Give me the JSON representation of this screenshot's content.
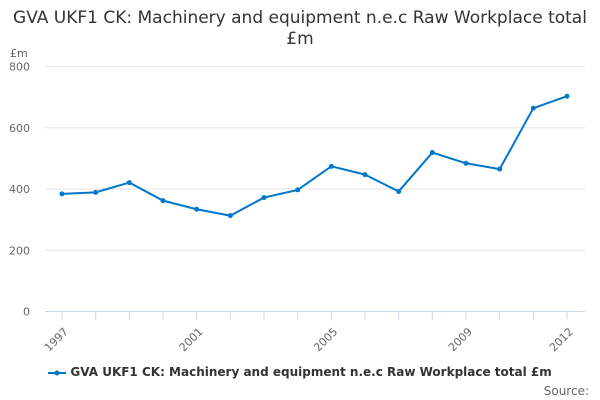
{
  "chart_data": {
    "type": "line",
    "title": "GVA UKF1 CK: Machinery and equipment n.e.c Raw Workplace total £m",
    "ylabel": "£m",
    "xlabel": "",
    "ylim": [
      0,
      800
    ],
    "yticks": [
      0,
      200,
      400,
      600,
      800
    ],
    "xticks": [
      1997,
      2001,
      2005,
      2009,
      2012
    ],
    "grid": true,
    "legend_position": "bottom",
    "x": [
      1997,
      1998,
      1999,
      2000,
      2001,
      2002,
      2003,
      2004,
      2005,
      2006,
      2007,
      2008,
      2009,
      2010,
      2011,
      2012
    ],
    "series": [
      {
        "name": "GVA UKF1 CK: Machinery and equipment n.e.c Raw Workplace total £m",
        "color": "#0077c8",
        "values": [
          384,
          389,
          421,
          362,
          334,
          313,
          372,
          397,
          474,
          447,
          392,
          519,
          484,
          465,
          664,
          703
        ]
      }
    ]
  },
  "source_label": "Source:"
}
